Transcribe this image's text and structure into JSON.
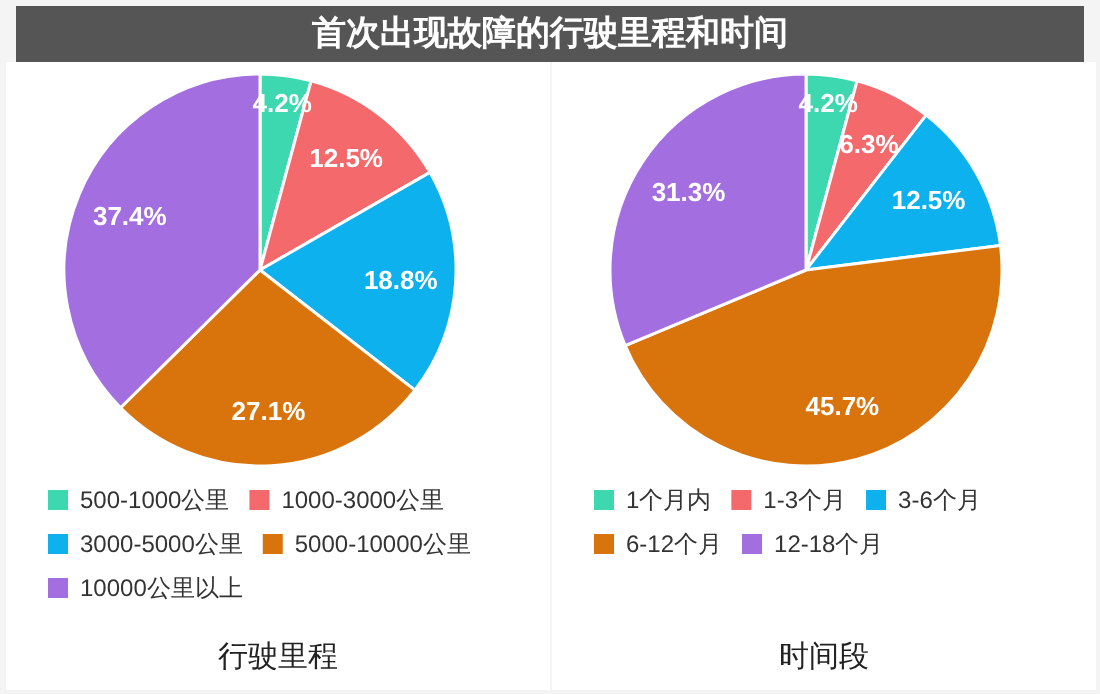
{
  "chart_data": [
    {
      "type": "pie",
      "title": "首次出现故障的行驶里程和时间",
      "xlabel": "行驶里程",
      "categories": [
        "500-1000公里",
        "1000-3000公里",
        "3000-5000公里",
        "5000-10000公里",
        "10000公里以上"
      ],
      "values": [
        4.2,
        12.5,
        18.8,
        27.1,
        37.4
      ],
      "value_labels": [
        "4.2%",
        "12.5%",
        "18.8%",
        "27.1%",
        "37.4%"
      ],
      "colors": [
        "#3ed8b0",
        "#f46a6c",
        "#0db1ee",
        "#d8740b",
        "#a36fe0"
      ],
      "legend": "bottom"
    },
    {
      "type": "pie",
      "xlabel": "时间段",
      "categories": [
        "1个月内",
        "1-3个月",
        "3-6个月",
        "6-12个月",
        "12-18个月"
      ],
      "values": [
        4.2,
        6.3,
        12.5,
        45.7,
        31.3
      ],
      "value_labels": [
        "4.2%",
        "6.3%",
        "12.5%",
        "45.7%",
        "31.3%"
      ],
      "colors": [
        "#3ed8b0",
        "#f46a6c",
        "#0db1ee",
        "#d8740b",
        "#a36fe0"
      ],
      "legend": "bottom"
    }
  ]
}
